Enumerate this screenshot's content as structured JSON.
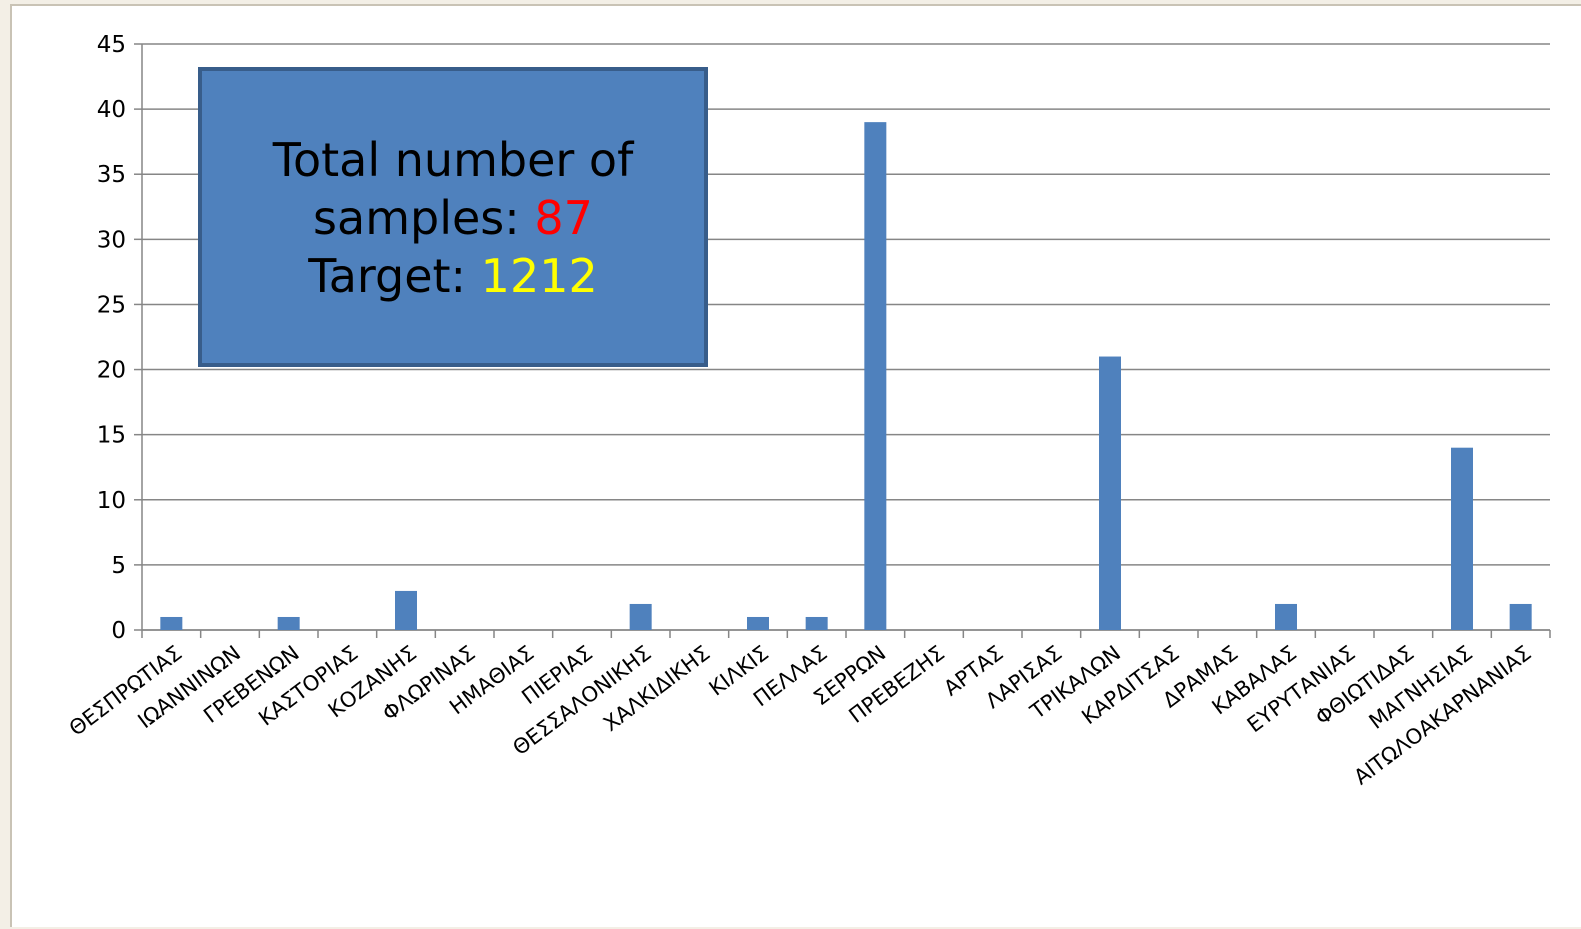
{
  "chart_data": {
    "type": "bar",
    "categories": [
      "ΘΕΣΠΡΩΤΙΑΣ",
      "ΙΩΑΝΝΙΝΩΝ",
      "ΓΡΕΒΕΝΩΝ",
      "ΚΑΣΤΟΡΙΑΣ",
      "ΚΟΖΑΝΗΣ",
      "ΦΛΩΡΙΝΑΣ",
      "ΗΜΑΘΙΑΣ",
      "ΠΙΕΡΙΑΣ",
      "ΘΕΣΣΑΛΟΝΙΚΗΣ",
      "ΧΑΛΚΙΔΙΚΗΣ",
      "ΚΙΛΚΙΣ",
      "ΠΕΛΛΑΣ",
      "ΣΕΡΡΩΝ",
      "ΠΡΕΒΕΖΗΣ",
      "ΑΡΤΑΣ",
      "ΛΑΡΙΣΑΣ",
      "ΤΡΙΚΑΛΩΝ",
      "ΚΑΡΔΙΤΣΑΣ",
      "ΔΡΑΜΑΣ",
      "ΚΑΒΑΛΑΣ",
      "ΕΥΡΥΤΑΝΙΑΣ",
      "ΦΘΙΩΤΙΔΑΣ",
      "ΜΑΓΝΗΣΙΑΣ",
      "ΑΙΤΩΛΟΑΚΑΡΝΑΝΙΑΣ"
    ],
    "values": [
      1,
      0,
      1,
      0,
      3,
      0,
      0,
      0,
      2,
      0,
      1,
      1,
      39,
      0,
      0,
      0,
      21,
      0,
      0,
      2,
      0,
      0,
      14,
      2
    ],
    "ylim": [
      0,
      45
    ],
    "yticks": [
      0,
      5,
      10,
      15,
      20,
      25,
      30,
      35,
      40,
      45
    ],
    "grid": true,
    "bar_color": "#4f81bd",
    "title": "",
    "xlabel": "",
    "ylabel": ""
  },
  "annotation": {
    "line1": "Total number of",
    "line2_label": "samples: ",
    "line2_value": "87",
    "line3_label": "Target: ",
    "line3_value": "1212",
    "value1_color": "#ff0000",
    "value2_color": "#ffff00",
    "box_color": "#4f81bd"
  }
}
